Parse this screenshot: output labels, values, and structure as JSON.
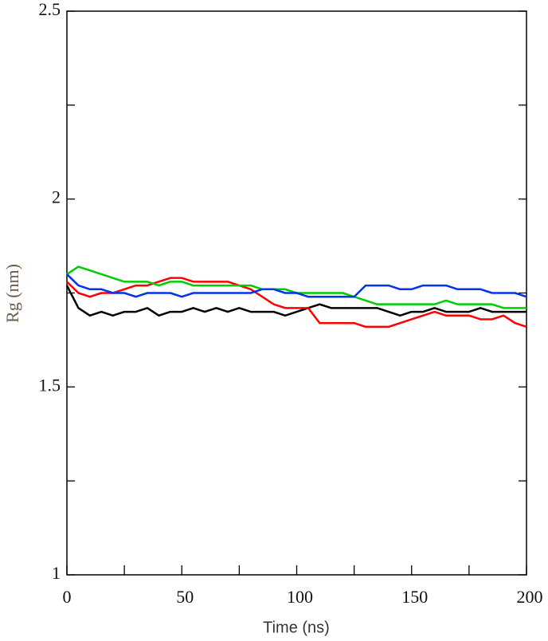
{
  "chart_data": {
    "type": "line",
    "x_label": "Time (ns)",
    "y_label": "Rg (nm)",
    "x": [
      0,
      5,
      10,
      15,
      20,
      25,
      30,
      35,
      40,
      45,
      50,
      55,
      60,
      65,
      70,
      75,
      80,
      85,
      90,
      95,
      100,
      105,
      110,
      115,
      120,
      125,
      130,
      135,
      140,
      145,
      150,
      155,
      160,
      165,
      170,
      175,
      180,
      185,
      190,
      195,
      200
    ],
    "series": [
      {
        "color": "#000000",
        "values": [
          1.77,
          1.71,
          1.69,
          1.7,
          1.69,
          1.7,
          1.7,
          1.71,
          1.69,
          1.7,
          1.7,
          1.71,
          1.7,
          1.71,
          1.7,
          1.71,
          1.7,
          1.7,
          1.7,
          1.69,
          1.7,
          1.71,
          1.72,
          1.71,
          1.71,
          1.71,
          1.71,
          1.71,
          1.7,
          1.69,
          1.7,
          1.7,
          1.71,
          1.7,
          1.7,
          1.7,
          1.71,
          1.7,
          1.7,
          1.7,
          1.7
        ]
      },
      {
        "color": "#ff0000",
        "values": [
          1.78,
          1.75,
          1.74,
          1.75,
          1.75,
          1.76,
          1.77,
          1.77,
          1.78,
          1.79,
          1.79,
          1.78,
          1.78,
          1.78,
          1.78,
          1.77,
          1.76,
          1.74,
          1.72,
          1.71,
          1.71,
          1.71,
          1.67,
          1.67,
          1.67,
          1.67,
          1.66,
          1.66,
          1.66,
          1.67,
          1.68,
          1.69,
          1.7,
          1.69,
          1.69,
          1.69,
          1.68,
          1.68,
          1.69,
          1.67,
          1.66
        ]
      },
      {
        "color": "#00cc00",
        "values": [
          1.8,
          1.82,
          1.81,
          1.8,
          1.79,
          1.78,
          1.78,
          1.78,
          1.77,
          1.78,
          1.78,
          1.77,
          1.77,
          1.77,
          1.77,
          1.77,
          1.77,
          1.76,
          1.76,
          1.76,
          1.75,
          1.75,
          1.75,
          1.75,
          1.75,
          1.74,
          1.73,
          1.72,
          1.72,
          1.72,
          1.72,
          1.72,
          1.72,
          1.73,
          1.72,
          1.72,
          1.72,
          1.72,
          1.71,
          1.71,
          1.71
        ]
      },
      {
        "color": "#0033ee",
        "values": [
          1.8,
          1.77,
          1.76,
          1.76,
          1.75,
          1.75,
          1.74,
          1.75,
          1.75,
          1.75,
          1.74,
          1.75,
          1.75,
          1.75,
          1.75,
          1.75,
          1.75,
          1.76,
          1.76,
          1.75,
          1.75,
          1.74,
          1.74,
          1.74,
          1.74,
          1.74,
          1.77,
          1.77,
          1.77,
          1.76,
          1.76,
          1.77,
          1.77,
          1.77,
          1.76,
          1.76,
          1.76,
          1.75,
          1.75,
          1.75,
          1.74
        ]
      }
    ],
    "xlim": [
      0,
      200
    ],
    "xticks": [
      0,
      50,
      100,
      150,
      200
    ],
    "xminor_ticks": [
      25,
      75,
      125,
      175
    ],
    "ylim": [
      1,
      2.5
    ],
    "yticks": [
      1,
      1.5,
      2,
      2.5
    ],
    "yminor_ticks": [
      1.25,
      1.75,
      2.25
    ]
  }
}
